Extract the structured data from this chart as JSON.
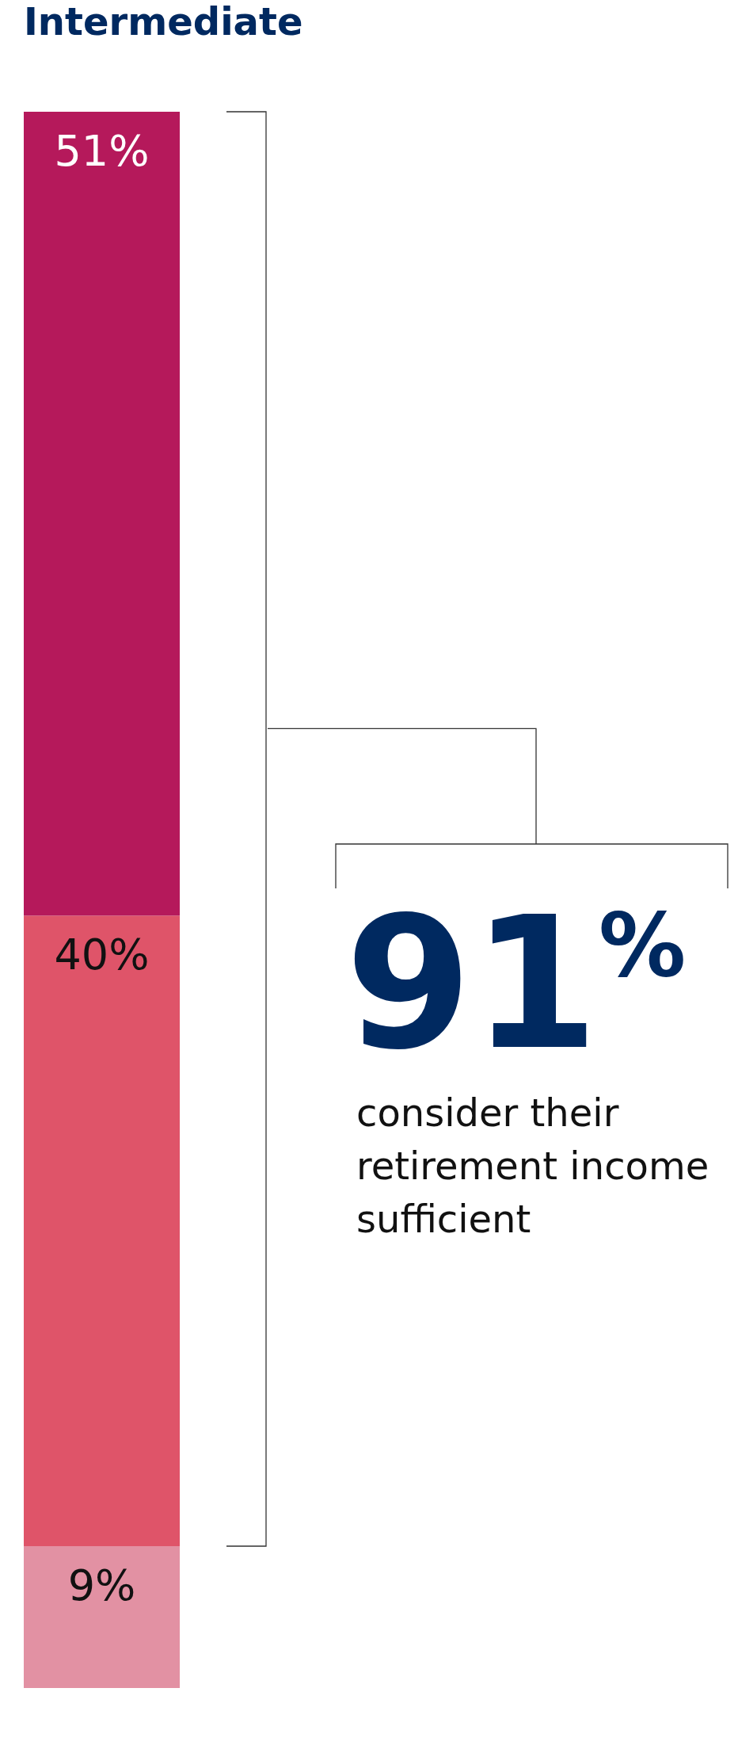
{
  "chart_data": {
    "type": "bar",
    "title": "Intermediate",
    "stacked": true,
    "categories": [
      null
    ],
    "series": [
      {
        "color": "#e291a3",
        "values": [
          9
        ],
        "value_labels": [
          "9%"
        ]
      },
      {
        "color": "#df5469",
        "values": [
          40
        ],
        "value_labels": [
          "40%"
        ]
      },
      {
        "color": "#b5195b",
        "values": [
          51
        ],
        "value_labels": [
          "51%"
        ]
      }
    ],
    "annotations": [
      "91$^{%}$",
      "consider their retirement income sufficient"
    ]
  }
}
